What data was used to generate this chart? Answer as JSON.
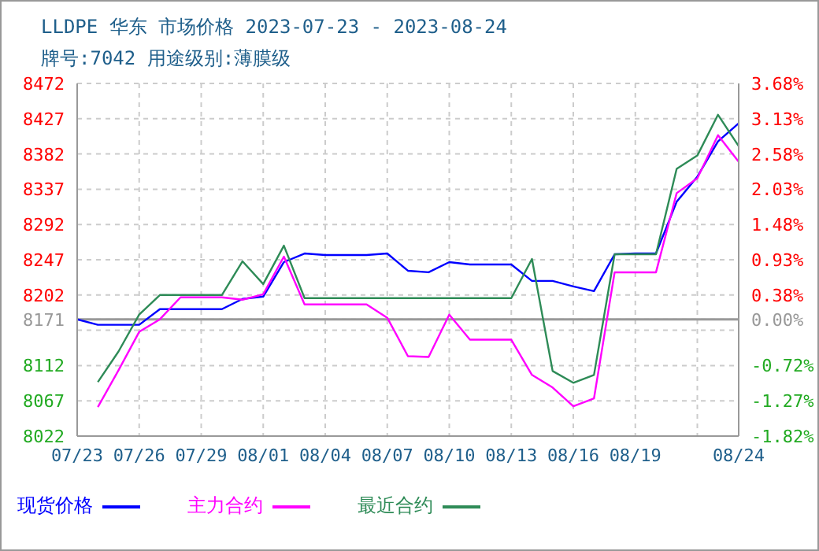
{
  "chart_data": {
    "type": "line",
    "title": "LLDPE 华东 市场价格 2023-07-23 - 2023-08-24",
    "subtitle": "牌号:7042 用途级别:薄膜级",
    "x": [
      "2023-07-23",
      "2023-07-24",
      "2023-07-25",
      "2023-07-26",
      "2023-07-27",
      "2023-07-28",
      "2023-07-29",
      "2023-07-30",
      "2023-07-31",
      "2023-08-01",
      "2023-08-02",
      "2023-08-03",
      "2023-08-04",
      "2023-08-05",
      "2023-08-06",
      "2023-08-07",
      "2023-08-08",
      "2023-08-09",
      "2023-08-10",
      "2023-08-11",
      "2023-08-12",
      "2023-08-13",
      "2023-08-14",
      "2023-08-15",
      "2023-08-16",
      "2023-08-17",
      "2023-08-18",
      "2023-08-19",
      "2023-08-20",
      "2023-08-21",
      "2023-08-22",
      "2023-08-23",
      "2023-08-24"
    ],
    "series": [
      {
        "name": "现货价格",
        "color": "#0000ff",
        "values": [
          8171,
          8164,
          8164,
          8164,
          8184,
          8184,
          8184,
          8184,
          8197,
          8200,
          8244,
          8255,
          8253,
          8253,
          8253,
          8255,
          8233,
          8231,
          8244,
          8241,
          8241,
          8241,
          8220,
          8220,
          8213,
          8207,
          8254,
          8255,
          8255,
          8321,
          8353,
          8398,
          8421
        ]
      },
      {
        "name": "主力合约",
        "color": "#ff00ff",
        "values": [
          null,
          8059,
          8106,
          8155,
          8171,
          8199,
          8199,
          8199,
          8196,
          8203,
          8251,
          8190,
          8190,
          8190,
          8190,
          8173,
          8124,
          8123,
          8177,
          8145,
          8145,
          8145,
          8100,
          8084,
          8060,
          8070,
          8231,
          8231,
          8231,
          8332,
          8351,
          8406,
          8372
        ]
      },
      {
        "name": "最近合约",
        "color": "#2e8b57",
        "values": [
          null,
          8091,
          8130,
          8177,
          8202,
          8202,
          8202,
          8202,
          8245,
          8216,
          8265,
          8198,
          8198,
          8198,
          8198,
          8198,
          8198,
          8198,
          8198,
          8198,
          8198,
          8198,
          8248,
          8105,
          8090,
          8100,
          8254,
          8254,
          8254,
          8363,
          8380,
          8432,
          8392
        ]
      }
    ],
    "xlim": [
      "2023-07-23",
      "2023-08-24"
    ],
    "xticks": [
      {
        "value": "2023-07-23",
        "label": "07/23"
      },
      {
        "value": "2023-07-26",
        "label": "07/26"
      },
      {
        "value": "2023-07-29",
        "label": "07/29"
      },
      {
        "value": "2023-08-01",
        "label": "08/01"
      },
      {
        "value": "2023-08-04",
        "label": "08/04"
      },
      {
        "value": "2023-08-07",
        "label": "08/07"
      },
      {
        "value": "2023-08-10",
        "label": "08/10"
      },
      {
        "value": "2023-08-13",
        "label": "08/13"
      },
      {
        "value": "2023-08-16",
        "label": "08/16"
      },
      {
        "value": "2023-08-19",
        "label": "08/19"
      },
      {
        "value": "2023-08-22",
        "label": null
      },
      {
        "value": "2023-08-24",
        "label": "08/24"
      }
    ],
    "ylim": [
      8022,
      8472
    ],
    "yticks": [
      8022,
      8067,
      8112,
      {
        "value": 8157,
        "label": null
      },
      8171,
      8202,
      8247,
      8292,
      8337,
      8382,
      8427,
      8472
    ],
    "y2lim": [
      -1.82,
      3.68
    ],
    "y2ticks": [
      {
        "value": -1.82,
        "label": "-1.82%"
      },
      {
        "value": -1.27,
        "label": "-1.27%"
      },
      {
        "value": -0.72,
        "label": "-0.72%"
      },
      {
        "value": 0,
        "label": "0.00%"
      },
      {
        "value": 0.38,
        "label": "0.38%"
      },
      {
        "value": 0.93,
        "label": "0.93%"
      },
      {
        "value": 1.48,
        "label": "1.48%"
      },
      {
        "value": 2.03,
        "label": "2.03%"
      },
      {
        "value": 2.58,
        "label": "2.58%"
      },
      {
        "value": 3.13,
        "label": "3.13%"
      },
      {
        "value": 3.68,
        "label": "3.68%"
      }
    ],
    "ref_lines": [
      {
        "axis": "y",
        "value": 8171,
        "color": "#999999"
      }
    ],
    "grid": true,
    "legend": "bottom",
    "marker": "none",
    "line_style": "solid"
  }
}
